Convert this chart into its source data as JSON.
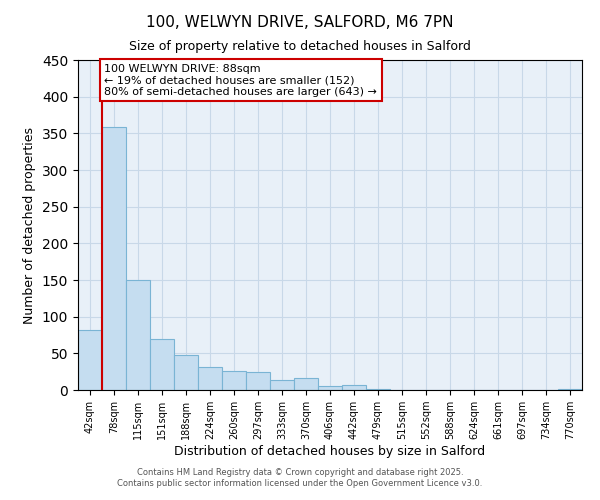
{
  "title": "100, WELWYN DRIVE, SALFORD, M6 7PN",
  "subtitle": "Size of property relative to detached houses in Salford",
  "xlabel": "Distribution of detached houses by size in Salford",
  "ylabel": "Number of detached properties",
  "categories": [
    "42sqm",
    "78sqm",
    "115sqm",
    "151sqm",
    "188sqm",
    "224sqm",
    "260sqm",
    "297sqm",
    "333sqm",
    "370sqm",
    "406sqm",
    "442sqm",
    "479sqm",
    "515sqm",
    "552sqm",
    "588sqm",
    "624sqm",
    "661sqm",
    "697sqm",
    "734sqm",
    "770sqm"
  ],
  "values": [
    82,
    358,
    150,
    70,
    48,
    32,
    26,
    25,
    14,
    17,
    5,
    7,
    2,
    0,
    0,
    0,
    0,
    0,
    0,
    0,
    2
  ],
  "bar_color": "#c5ddf0",
  "bar_edge_color": "#7ab4d4",
  "ylim": [
    0,
    450
  ],
  "yticks": [
    0,
    50,
    100,
    150,
    200,
    250,
    300,
    350,
    400,
    450
  ],
  "vline_color": "#cc0000",
  "annotation_title": "100 WELWYN DRIVE: 88sqm",
  "annotation_line1": "← 19% of detached houses are smaller (152)",
  "annotation_line2": "80% of semi-detached houses are larger (643) →",
  "annotation_box_color": "#cc0000",
  "footer1": "Contains HM Land Registry data © Crown copyright and database right 2025.",
  "footer2": "Contains public sector information licensed under the Open Government Licence v3.0.",
  "background_color": "#ffffff",
  "plot_bg_color": "#e8f0f8",
  "grid_color": "#c8d8e8"
}
